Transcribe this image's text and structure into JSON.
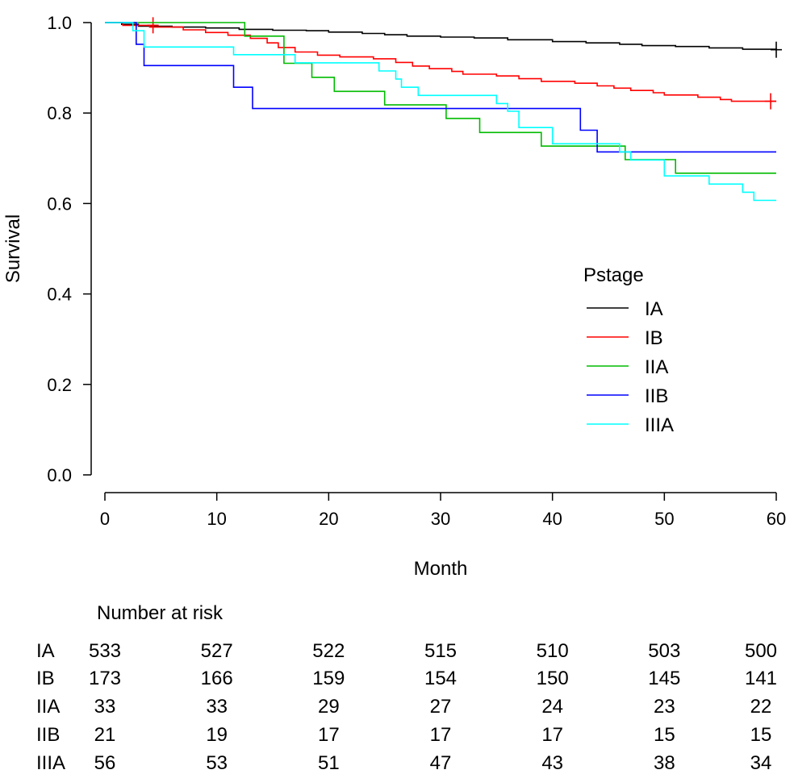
{
  "chart_data": {
    "type": "line",
    "subtype": "kaplan-meier-step",
    "xlabel": "Month",
    "ylabel": "Survival",
    "xlim": [
      0,
      60
    ],
    "ylim": [
      0,
      1
    ],
    "x_ticks": [
      0,
      10,
      20,
      30,
      40,
      50,
      60
    ],
    "y_ticks": [
      0.0,
      0.2,
      0.4,
      0.6,
      0.8,
      1.0
    ],
    "x_tick_labels": [
      "0",
      "10",
      "20",
      "30",
      "40",
      "50",
      "60"
    ],
    "y_tick_labels": [
      "0.0",
      "0.2",
      "0.4",
      "0.6",
      "0.8",
      "1.0"
    ],
    "grid": false,
    "legend": {
      "title": "Pstage",
      "placement": "right"
    },
    "series": [
      {
        "name": "IA",
        "color": "#000000",
        "points": [
          [
            0,
            1.0
          ],
          [
            1.5,
            0.996
          ],
          [
            3,
            0.992
          ],
          [
            6,
            0.99
          ],
          [
            9,
            0.988
          ],
          [
            12,
            0.985
          ],
          [
            15,
            0.983
          ],
          [
            18,
            0.982
          ],
          [
            20,
            0.979
          ],
          [
            23,
            0.976
          ],
          [
            25,
            0.973
          ],
          [
            27,
            0.97
          ],
          [
            30,
            0.968
          ],
          [
            33,
            0.966
          ],
          [
            36,
            0.962
          ],
          [
            40,
            0.958
          ],
          [
            43,
            0.955
          ],
          [
            46,
            0.952
          ],
          [
            48,
            0.949
          ],
          [
            51,
            0.947
          ],
          [
            54,
            0.944
          ],
          [
            57,
            0.941
          ],
          [
            60,
            0.94
          ]
        ],
        "censor": [
          [
            60,
            0.94
          ]
        ]
      },
      {
        "name": "IB",
        "color": "#ff0000",
        "points": [
          [
            0,
            1.0
          ],
          [
            1.6,
            0.994
          ],
          [
            4,
            0.99
          ],
          [
            7,
            0.984
          ],
          [
            9,
            0.978
          ],
          [
            11,
            0.972
          ],
          [
            13,
            0.965
          ],
          [
            14.5,
            0.955
          ],
          [
            15.5,
            0.945
          ],
          [
            17,
            0.935
          ],
          [
            19,
            0.928
          ],
          [
            21,
            0.924
          ],
          [
            24,
            0.92
          ],
          [
            26,
            0.912
          ],
          [
            27.5,
            0.904
          ],
          [
            29,
            0.898
          ],
          [
            31,
            0.892
          ],
          [
            32,
            0.886
          ],
          [
            35,
            0.882
          ],
          [
            37,
            0.876
          ],
          [
            39,
            0.87
          ],
          [
            42,
            0.866
          ],
          [
            44,
            0.86
          ],
          [
            45.5,
            0.855
          ],
          [
            47,
            0.85
          ],
          [
            49,
            0.845
          ],
          [
            50,
            0.84
          ],
          [
            53,
            0.835
          ],
          [
            55,
            0.83
          ],
          [
            56,
            0.826
          ],
          [
            60,
            0.826
          ]
        ],
        "censor": [
          [
            4.3,
            0.994
          ],
          [
            59.5,
            0.826
          ]
        ]
      },
      {
        "name": "IIA",
        "color": "#00bb00",
        "points": [
          [
            0,
            1.0
          ],
          [
            12.5,
            0.97
          ],
          [
            16,
            0.91
          ],
          [
            18.5,
            0.879
          ],
          [
            20.5,
            0.848
          ],
          [
            25,
            0.818
          ],
          [
            30.5,
            0.788
          ],
          [
            33.5,
            0.757
          ],
          [
            39,
            0.727
          ],
          [
            46.5,
            0.697
          ],
          [
            51,
            0.667
          ],
          [
            60,
            0.667
          ]
        ],
        "censor": []
      },
      {
        "name": "IIB",
        "color": "#0000ff",
        "points": [
          [
            0,
            1.0
          ],
          [
            2.8,
            0.952
          ],
          [
            3.5,
            0.905
          ],
          [
            11.5,
            0.857
          ],
          [
            13.2,
            0.81
          ],
          [
            42.5,
            0.762
          ],
          [
            44,
            0.714
          ],
          [
            60,
            0.714
          ]
        ],
        "censor": []
      },
      {
        "name": "IIIA",
        "color": "#00ffff",
        "points": [
          [
            0,
            1.0
          ],
          [
            2.5,
            0.982
          ],
          [
            3.5,
            0.946
          ],
          [
            11.5,
            0.929
          ],
          [
            17,
            0.911
          ],
          [
            20,
            0.911
          ],
          [
            22,
            0.911
          ],
          [
            24.5,
            0.893
          ],
          [
            26,
            0.875
          ],
          [
            26.5,
            0.857
          ],
          [
            28,
            0.839
          ],
          [
            35,
            0.821
          ],
          [
            36,
            0.804
          ],
          [
            37,
            0.768
          ],
          [
            40,
            0.732
          ],
          [
            46,
            0.714
          ],
          [
            47,
            0.696
          ],
          [
            50,
            0.661
          ],
          [
            52,
            0.661
          ],
          [
            54,
            0.643
          ],
          [
            57,
            0.625
          ],
          [
            58,
            0.607
          ],
          [
            60,
            0.607
          ]
        ],
        "censor": []
      }
    ],
    "risk_table": {
      "title": "Number at risk",
      "times": [
        0,
        10,
        20,
        30,
        40,
        50,
        60
      ],
      "rows": [
        {
          "label": "IA",
          "values": [
            "533",
            "527",
            "522",
            "515",
            "510",
            "503",
            "500"
          ]
        },
        {
          "label": "IB",
          "values": [
            "173",
            "166",
            "159",
            "154",
            "150",
            "145",
            "141"
          ]
        },
        {
          "label": "IIA",
          "values": [
            "33",
            "33",
            "29",
            "27",
            "24",
            "23",
            "22"
          ]
        },
        {
          "label": "IIB",
          "values": [
            "21",
            "19",
            "17",
            "17",
            "17",
            "15",
            "15"
          ]
        },
        {
          "label": "IIIA",
          "values": [
            "56",
            "53",
            "51",
            "47",
            "43",
            "38",
            "34"
          ]
        }
      ]
    }
  }
}
